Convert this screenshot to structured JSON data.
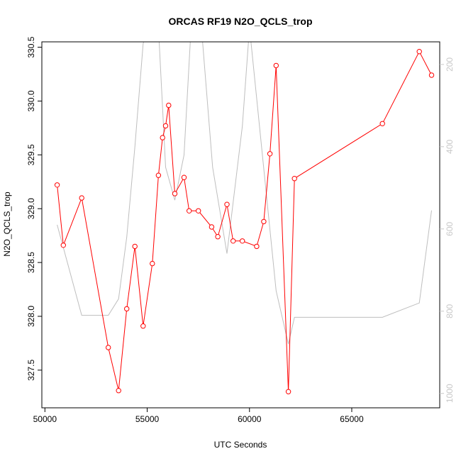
{
  "chart_data": {
    "type": "line",
    "title": "ORCAS RF19 N2O_QCLS_trop",
    "xlabel": "UTC Seconds",
    "ylabel": "N2O_QCLS_trop",
    "xlim": [
      49850,
      69300
    ],
    "ylim": [
      327.15,
      330.55
    ],
    "y2lim": [
      1035,
      145
    ],
    "xticks": [
      50000,
      55000,
      60000,
      65000
    ],
    "yticks": [
      327.5,
      328.0,
      328.5,
      329.0,
      329.5,
      330.0,
      330.5
    ],
    "y2ticks": [
      200,
      400,
      600,
      800,
      1000
    ],
    "grid": false,
    "series": [
      {
        "role": "primary",
        "color": "#ff0000",
        "marker": "open-circle",
        "x": [
          50600,
          50900,
          51800,
          53100,
          53600,
          54000,
          54400,
          54800,
          55250,
          55550,
          55750,
          55900,
          56050,
          56350,
          56800,
          57050,
          57500,
          58150,
          58450,
          58900,
          59200,
          59650,
          60350,
          60700,
          61000,
          61300,
          61900,
          62200,
          66500,
          68300,
          68900
        ],
        "y": [
          329.22,
          328.66,
          329.1,
          327.71,
          327.31,
          328.07,
          328.65,
          327.91,
          328.49,
          329.31,
          329.66,
          329.77,
          329.96,
          329.14,
          329.29,
          328.98,
          328.98,
          328.83,
          328.74,
          329.04,
          328.7,
          328.7,
          328.65,
          328.88,
          329.51,
          330.33,
          327.3,
          329.28,
          329.79,
          330.46,
          330.24
        ]
      },
      {
        "role": "secondary",
        "color": "#bebebe",
        "x": [
          50600,
          51800,
          53100,
          53600,
          54000,
          54400,
          54800,
          55250,
          55550,
          55900,
          56350,
          56800,
          57200,
          57700,
          58200,
          58900,
          59650,
          60000,
          61300,
          61900,
          62200,
          66500,
          68300,
          68900
        ],
        "y": [
          590,
          810,
          810,
          770,
          620,
          400,
          150,
          60,
          110,
          450,
          530,
          420,
          60,
          140,
          450,
          660,
          350,
          110,
          750,
          880,
          815,
          815,
          780,
          555
        ]
      }
    ]
  }
}
